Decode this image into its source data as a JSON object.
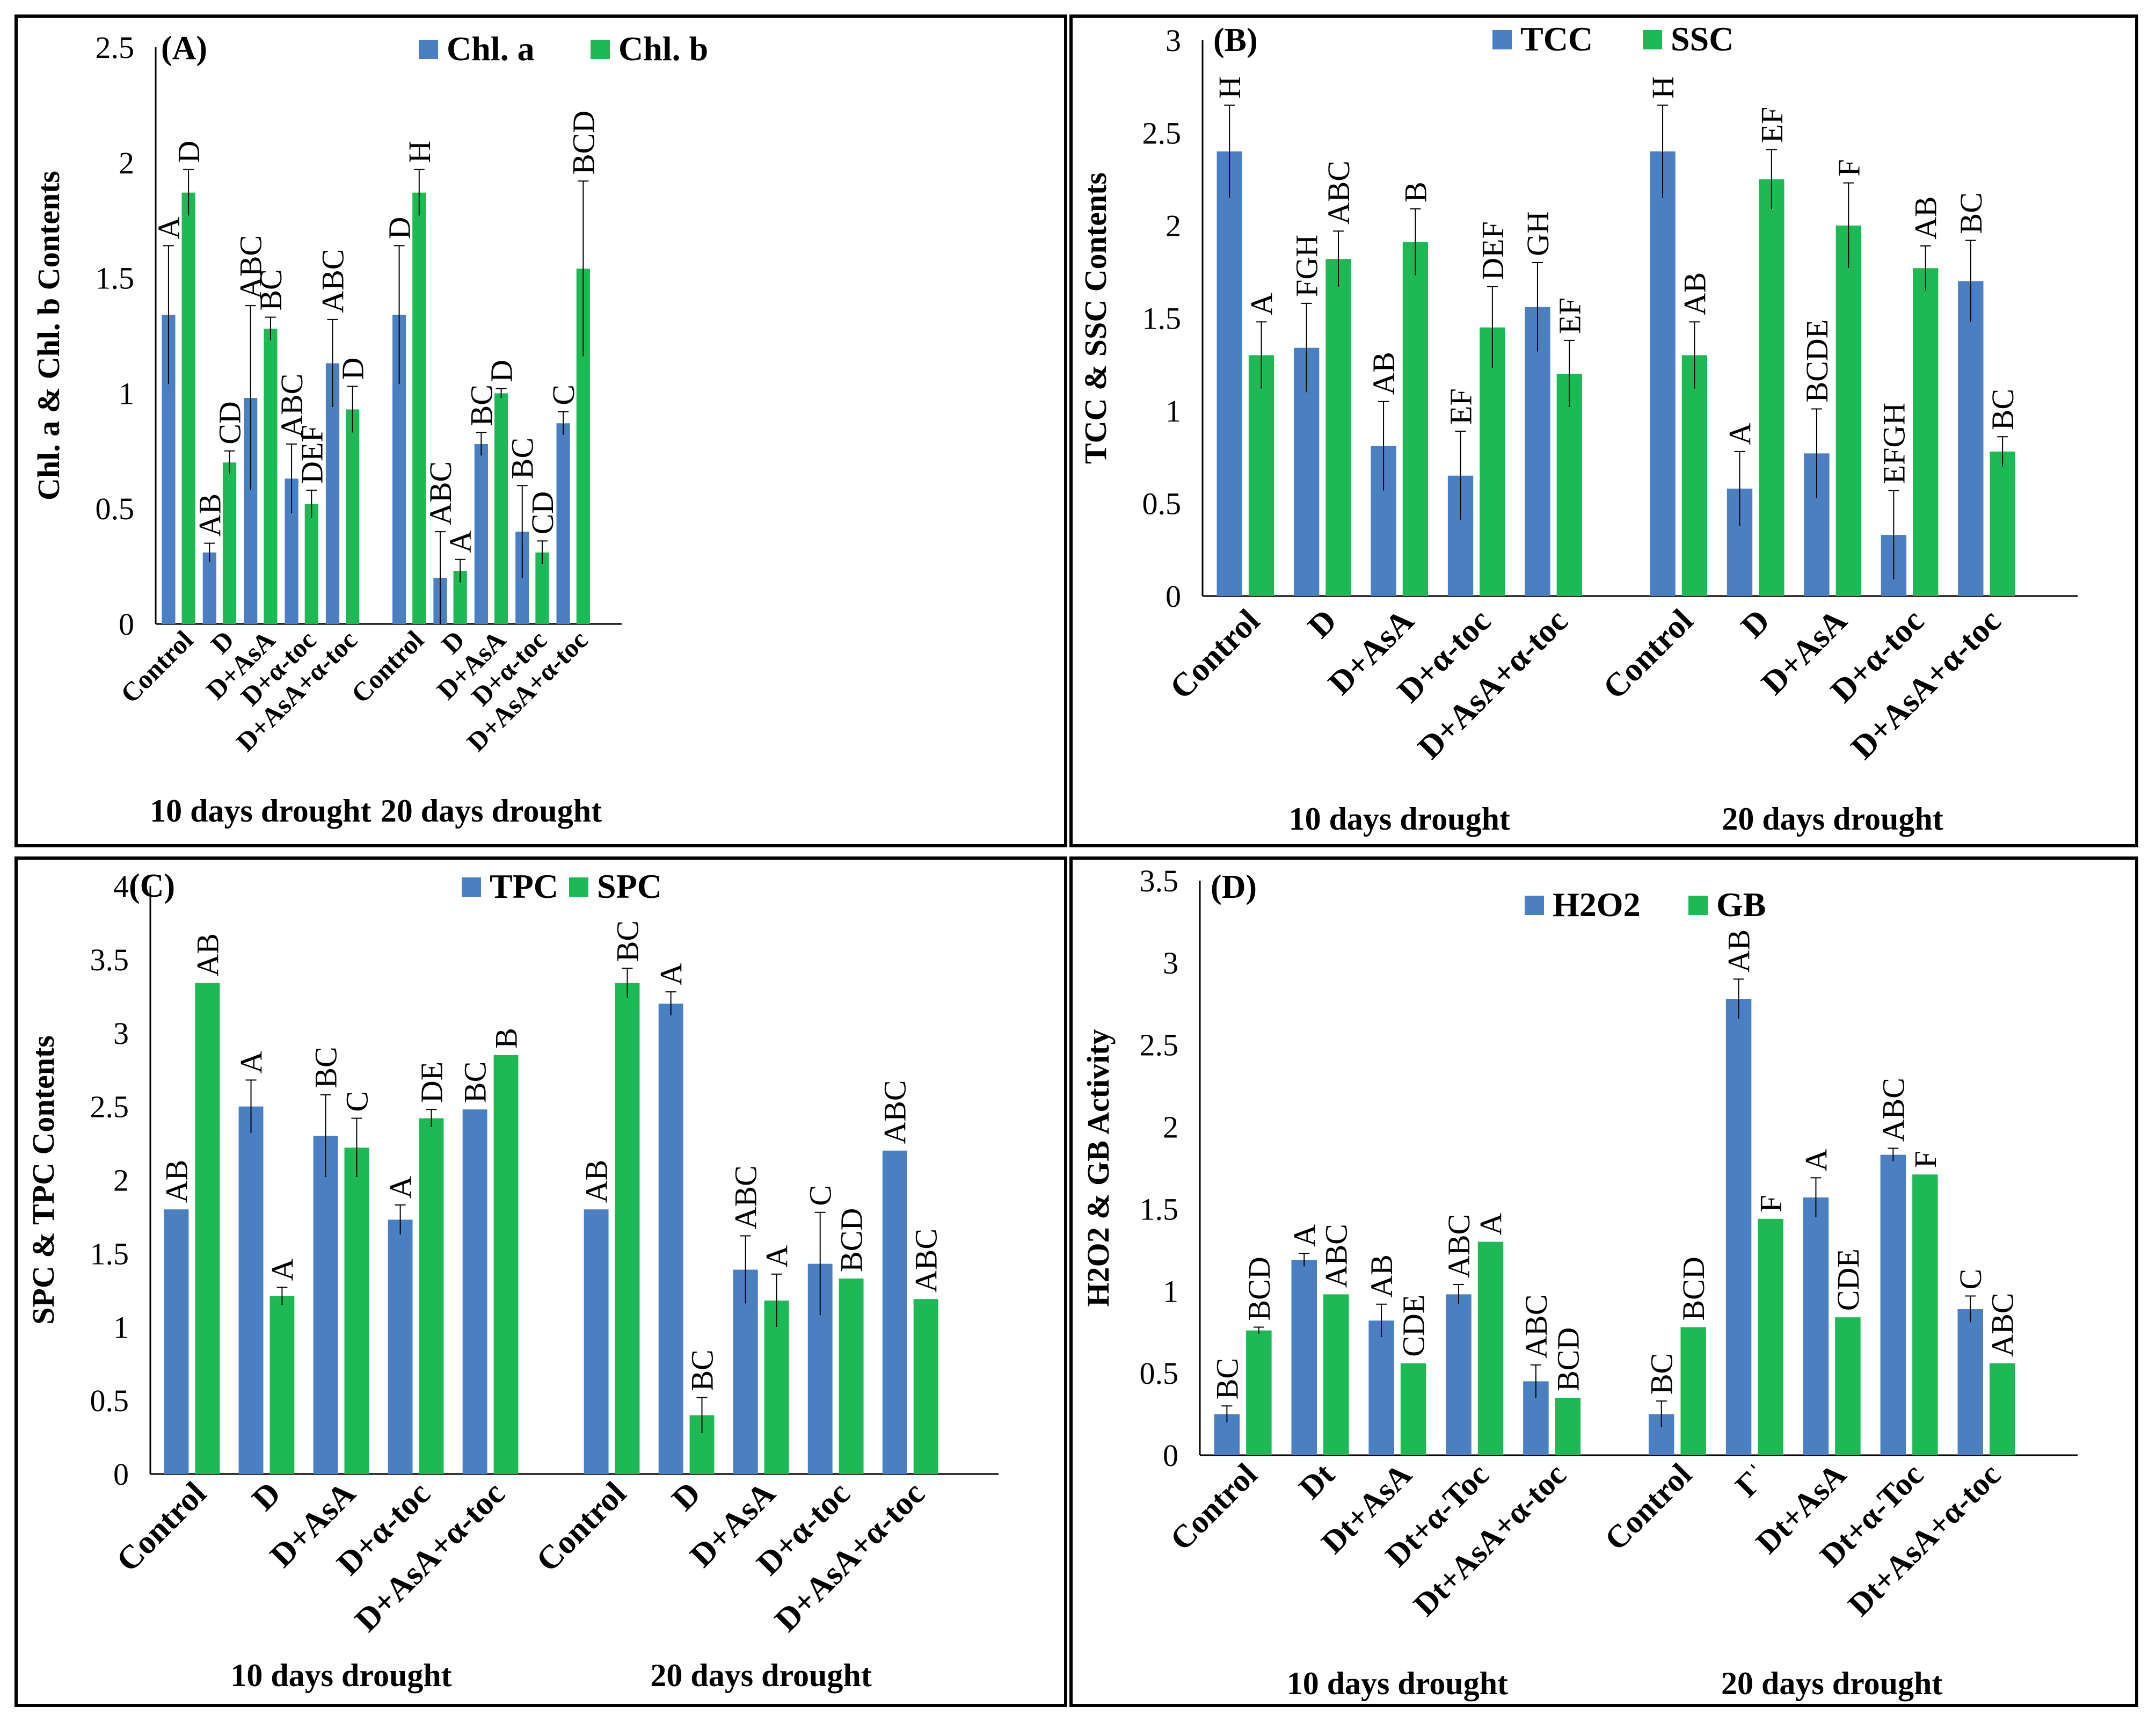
{
  "colors": {
    "series1": "#4a7fc1",
    "series2": "#1db954",
    "border": "#000000",
    "grid": "#d9d9d9"
  },
  "chart_data": [
    {
      "type": "bar",
      "panel": "(A)",
      "ylabel": "Chl. a & Chl. b Contents",
      "yticks": [
        "0",
        "0.5",
        "1",
        "1.5",
        "2",
        "2.5"
      ],
      "ylim": [
        0,
        2.5
      ],
      "groups": [
        "10 days drought",
        "20 days drought"
      ],
      "categories": [
        [
          "Control",
          "D",
          "D+AsA",
          "D+α-toc",
          "D+AsA+α-toc"
        ],
        [
          "Control",
          "D",
          "D+AsA",
          "D+α-toc",
          "D+AsA+α-toc"
        ]
      ],
      "series": [
        {
          "name": "Chl. a",
          "values": [
            [
              1.34,
              0.31,
              0.98,
              0.63,
              1.13
            ],
            [
              1.34,
              0.2,
              0.78,
              0.4,
              0.87
            ]
          ],
          "errors": [
            [
              0.3,
              0.04,
              0.4,
              0.15,
              0.19
            ],
            [
              0.3,
              0.2,
              0.05,
              0.2,
              0.05
            ]
          ],
          "labels": [
            [
              "A",
              "AB",
              "ABC",
              "ABC",
              "ABC"
            ],
            [
              "D",
              "ABC",
              "BC",
              "BC",
              "C"
            ]
          ]
        },
        {
          "name": "Chl. b",
          "values": [
            [
              1.87,
              0.7,
              1.28,
              0.52,
              0.93
            ],
            [
              1.87,
              0.23,
              1.0,
              0.31,
              1.54
            ]
          ],
          "errors": [
            [
              0.1,
              0.05,
              0.05,
              0.06,
              0.1
            ],
            [
              0.1,
              0.05,
              0.02,
              0.05,
              0.38
            ]
          ],
          "labels": [
            [
              "D",
              "CD",
              "BC",
              "DEF",
              "D"
            ],
            [
              "H",
              "A",
              "D",
              "CD",
              "BCD"
            ]
          ]
        }
      ]
    },
    {
      "type": "bar",
      "panel": "(B)",
      "ylabel": "TCC & SSC Contents",
      "yticks": [
        "0",
        "0.5",
        "1",
        "1.5",
        "2",
        "2.5",
        "3"
      ],
      "ylim": [
        0,
        3
      ],
      "groups": [
        "10 days drought",
        "20 days drought"
      ],
      "categories": [
        [
          "Control",
          "D",
          "D+AsA",
          "D+α-toc",
          "D+AsA+α-toc"
        ],
        [
          "Control",
          "D",
          "D+AsA",
          "D+α-toc",
          "D+AsA+α-toc"
        ]
      ],
      "series": [
        {
          "name": "TCC",
          "values": [
            [
              2.4,
              1.34,
              0.81,
              0.65,
              1.56
            ],
            [
              2.4,
              0.58,
              0.77,
              0.33,
              1.7
            ]
          ],
          "errors": [
            [
              0.25,
              0.24,
              0.24,
              0.24,
              0.24
            ],
            [
              0.25,
              0.2,
              0.24,
              0.24,
              0.22
            ]
          ],
          "labels": [
            [
              "H",
              "FGH",
              "AB",
              "EF",
              "GH"
            ],
            [
              "H",
              "A",
              "BCDE",
              "EFGH",
              "BC"
            ]
          ]
        },
        {
          "name": "SSC",
          "values": [
            [
              1.3,
              1.82,
              1.91,
              1.45,
              1.2
            ],
            [
              1.3,
              2.25,
              2.0,
              1.77,
              0.78
            ]
          ],
          "errors": [
            [
              0.18,
              0.15,
              0.18,
              0.22,
              0.18
            ],
            [
              0.18,
              0.16,
              0.23,
              0.12,
              0.08
            ]
          ],
          "labels": [
            [
              "A",
              "ABC",
              "B",
              "DEF",
              "EF"
            ],
            [
              "AB",
              "EF",
              "F",
              "AB",
              "BC"
            ]
          ]
        }
      ]
    },
    {
      "type": "bar",
      "panel": "(C)",
      "ylabel": "SPC & TPC Contents",
      "yticks": [
        "0",
        "0.5",
        "1",
        "1.5",
        "2",
        "2.5",
        "3",
        "3.5",
        "4"
      ],
      "ylim": [
        0,
        4
      ],
      "groups": [
        "10 days drought",
        "20 days drought"
      ],
      "categories": [
        [
          "Control",
          "D",
          "D+AsA",
          "D+α-toc",
          "D+AsA+α-toc"
        ],
        [
          "Control",
          "D",
          "D+AsA",
          "D+α-toc",
          "D+AsA+α-toc"
        ]
      ],
      "series": [
        {
          "name": "TPC",
          "values": [
            [
              1.8,
              2.5,
              2.3,
              1.73,
              2.48
            ],
            [
              1.8,
              3.2,
              1.39,
              1.43,
              2.2
            ]
          ],
          "errors": [
            [
              0.0,
              0.18,
              0.28,
              0.1,
              0.0
            ],
            [
              0.0,
              0.08,
              0.23,
              0.35,
              0.0
            ]
          ],
          "labels": [
            [
              "AB",
              "A",
              "BC",
              "A",
              "BC"
            ],
            [
              "AB",
              "A",
              "ABC",
              "C",
              "ABC"
            ]
          ]
        },
        {
          "name": "SPC",
          "values": [
            [
              3.34,
              1.21,
              2.22,
              2.42,
              2.85
            ],
            [
              3.34,
              0.4,
              1.18,
              1.33,
              1.19
            ]
          ],
          "errors": [
            [
              0.0,
              0.06,
              0.2,
              0.06,
              0.0
            ],
            [
              0.1,
              0.12,
              0.18,
              0.0,
              0.0
            ]
          ],
          "labels": [
            [
              "AB",
              "A",
              "C",
              "DE",
              "B"
            ],
            [
              "BC",
              "BC",
              "A",
              "BCD",
              "ABC"
            ]
          ]
        }
      ]
    },
    {
      "type": "bar",
      "panel": "(D)",
      "ylabel": "H2O2 & GB Activity",
      "yticks": [
        "0",
        "0.5",
        "1",
        "1.5",
        "2",
        "2.5",
        "3",
        "3.5"
      ],
      "ylim": [
        0,
        3.5
      ],
      "groups": [
        "10 days drought",
        "20 days drought"
      ],
      "categories": [
        [
          "Control",
          "Dt",
          "Dt+AsA",
          "Dt+α-Toc",
          "Dt+AsA+α-toc"
        ],
        [
          "Control",
          "Γˈ",
          "Dt+AsA",
          "Dt+α-Toc",
          "Dt+AsA+α-toc"
        ]
      ],
      "series": [
        {
          "name": "H2O2",
          "values": [
            [
              0.25,
              1.19,
              0.82,
              0.98,
              0.45
            ],
            [
              0.25,
              2.78,
              1.57,
              1.83,
              0.89
            ]
          ],
          "errors": [
            [
              0.05,
              0.04,
              0.1,
              0.06,
              0.1
            ],
            [
              0.08,
              0.12,
              0.12,
              0.04,
              0.08
            ]
          ],
          "labels": [
            [
              "BC",
              "A",
              "AB",
              "ABC",
              "ABC"
            ],
            [
              "BC",
              "AB",
              "A",
              "ABC",
              "C"
            ]
          ]
        },
        {
          "name": "GB",
          "values": [
            [
              0.76,
              0.98,
              0.56,
              1.3,
              0.35
            ],
            [
              0.78,
              1.44,
              0.84,
              1.71,
              0.56
            ]
          ],
          "errors": [
            [
              0.02,
              0.0,
              0.0,
              0.0,
              0.0
            ],
            [
              0.0,
              0.0,
              0.0,
              0.0,
              0.0
            ]
          ],
          "labels": [
            [
              "BCD",
              "ABC",
              "CDE",
              "A",
              "BCD"
            ],
            [
              "BCD",
              "F",
              "CDE",
              "F",
              "ABC"
            ]
          ]
        }
      ]
    }
  ]
}
